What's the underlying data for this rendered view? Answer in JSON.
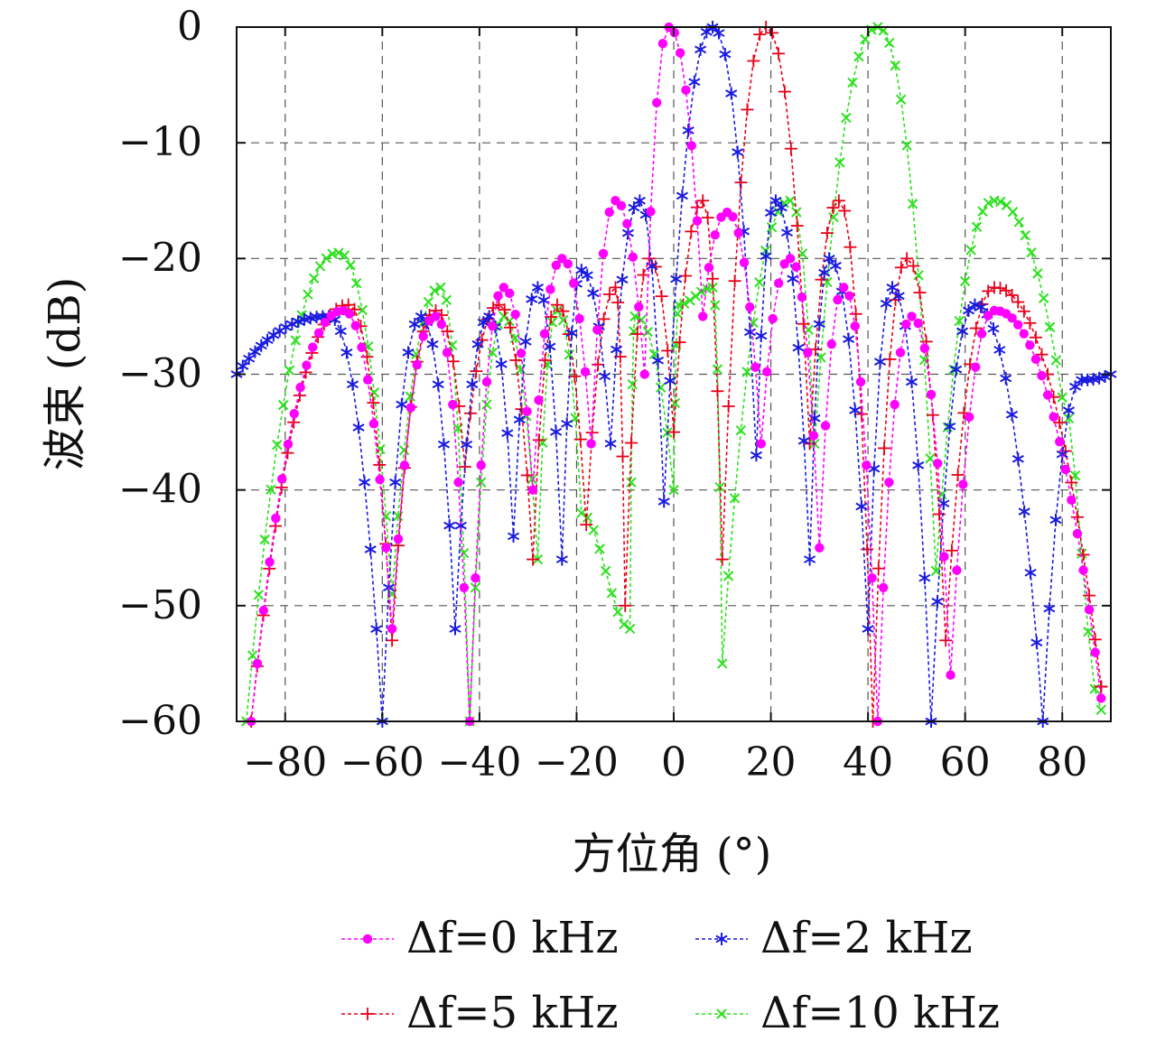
{
  "chart_data": {
    "type": "line",
    "title": "",
    "xlabel": "方位角 (°)",
    "ylabel": "波束 (dB)",
    "xlim": [
      -90,
      90
    ],
    "ylim": [
      -60,
      0
    ],
    "xticks": [
      -80,
      -60,
      -40,
      -20,
      0,
      20,
      40,
      60,
      80
    ],
    "yticks": [
      0,
      -10,
      -20,
      -30,
      -40,
      -50,
      -60
    ],
    "xtick_labels": [
      "−80",
      "−60",
      "−40",
      "−20",
      "0",
      "20",
      "40",
      "60",
      "80"
    ],
    "ytick_labels": [
      "0",
      "−10",
      "−20",
      "−30",
      "−40",
      "−50",
      "−60"
    ],
    "grid": true,
    "legend_position": "bottom",
    "series": [
      {
        "name": "Δf=0 kHz",
        "color": "#ff00ff",
        "marker": "dot",
        "sidelobes": [
          [
            -68,
            -24.5
          ],
          [
            -49,
            -25
          ],
          [
            -35,
            -22.5
          ],
          [
            -23,
            -20
          ],
          [
            -12,
            -15
          ],
          [
            -1,
            0
          ],
          [
            11,
            -16
          ],
          [
            24,
            -20
          ],
          [
            35,
            -22.5
          ],
          [
            49,
            -25
          ],
          [
            66,
            -24.5
          ]
        ],
        "nulls": [
          [
            -58,
            -52
          ],
          [
            -42,
            -60
          ],
          [
            -29,
            -40
          ],
          [
            -17,
            -36
          ],
          [
            -6,
            -30
          ],
          [
            6,
            -25
          ],
          [
            18,
            -36
          ],
          [
            30,
            -45
          ],
          [
            42,
            -60
          ],
          [
            57,
            -56
          ]
        ],
        "edges": [
          [
            -87,
            -60
          ],
          [
            88,
            -58
          ]
        ]
      },
      {
        "name": "Δf=2 kHz",
        "color": "#1a1adf",
        "marker": "asterisk",
        "sidelobes": [
          [
            -71,
            -25
          ],
          [
            -52,
            -25
          ],
          [
            -38,
            -25
          ],
          [
            -28,
            -22.5
          ],
          [
            -19,
            -21
          ],
          [
            -7,
            -15
          ],
          [
            8,
            0
          ],
          [
            21,
            -15
          ],
          [
            32,
            -20
          ],
          [
            45,
            -22.5
          ],
          [
            62,
            -24
          ],
          [
            84,
            -30.5
          ]
        ],
        "nulls": [
          [
            -60,
            -60
          ],
          [
            -45,
            -52
          ],
          [
            -33,
            -44
          ],
          [
            -23,
            -46
          ],
          [
            -13,
            -36
          ],
          [
            -2,
            -41
          ],
          [
            17,
            -37
          ],
          [
            28,
            -46
          ],
          [
            40,
            -52
          ],
          [
            53,
            -60
          ],
          [
            76,
            -60
          ]
        ],
        "edges": [
          [
            -90,
            -30
          ],
          [
            90,
            -30
          ]
        ]
      },
      {
        "name": "Δf=5 kHz",
        "color": "#e8001a",
        "marker": "plus",
        "sidelobes": [
          [
            -67,
            -24
          ],
          [
            -49,
            -24.5
          ],
          [
            -36,
            -24
          ],
          [
            -24,
            -24
          ],
          [
            -12,
            -22.5
          ],
          [
            -5,
            -20
          ],
          [
            6,
            -15
          ],
          [
            19,
            0
          ],
          [
            34,
            -15
          ],
          [
            48,
            -20
          ],
          [
            66,
            -22.5
          ]
        ],
        "nulls": [
          [
            -58,
            -53
          ],
          [
            -43,
            -38
          ],
          [
            -29,
            -46
          ],
          [
            -18,
            -43
          ],
          [
            -10,
            -50
          ],
          [
            0,
            -35
          ],
          [
            10,
            -46
          ],
          [
            28,
            -36
          ],
          [
            41,
            -60
          ],
          [
            56,
            -53
          ],
          [
            88,
            -57
          ]
        ],
        "edges": [
          [
            -87,
            -60
          ],
          [
            88,
            -57
          ]
        ]
      },
      {
        "name": "Δf=10 kHz",
        "color": "#2de01e",
        "marker": "cross",
        "sidelobes": [
          [
            -69,
            -19.5
          ],
          [
            -48,
            -22.5
          ],
          [
            -35,
            -25
          ],
          [
            -24,
            -24.5
          ],
          [
            -8,
            -25
          ],
          [
            1,
            -24
          ],
          [
            8,
            -22.5
          ],
          [
            24,
            -15
          ],
          [
            42,
            0
          ],
          [
            66,
            -15
          ]
        ],
        "nulls": [
          [
            -58,
            -49
          ],
          [
            -42,
            -60
          ],
          [
            -28,
            -46
          ],
          [
            -19,
            -42
          ],
          [
            -9,
            -52
          ],
          [
            0,
            -40
          ],
          [
            10,
            -55
          ],
          [
            29,
            -36
          ],
          [
            54,
            -47
          ],
          [
            80,
            -32
          ]
        ],
        "edges": [
          [
            -88,
            -60
          ],
          [
            88,
            -59
          ]
        ]
      }
    ]
  }
}
